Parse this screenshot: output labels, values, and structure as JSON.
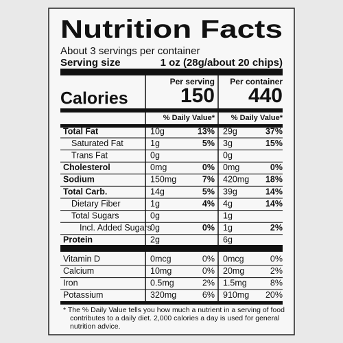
{
  "header": {
    "title": "Nutrition Facts",
    "servings": "About 3 servings per container",
    "serving_size_label": "Serving size",
    "serving_size_value": "1 oz (28g/about 20 chips)"
  },
  "columns": [
    {
      "heading": "Per serving",
      "calories": "150",
      "dv_heading": "% Daily Value*"
    },
    {
      "heading": "Per container",
      "calories": "440",
      "dv_heading": "% Daily Value*"
    }
  ],
  "calories_label": "Calories",
  "nutrients": [
    {
      "name": "Total Fat",
      "serving": [
        "10g",
        "13%"
      ],
      "container": [
        "29g",
        "37%"
      ]
    },
    {
      "name": "Saturated Fat",
      "serving": [
        "1g",
        "5%"
      ],
      "container": [
        "3g",
        "15%"
      ]
    },
    {
      "name": "Trans Fat",
      "serving": [
        "0g",
        null
      ],
      "container": [
        "0g",
        null
      ]
    },
    {
      "name": "Cholesterol",
      "serving": [
        "0mg",
        "0%"
      ],
      "container": [
        "0mg",
        "0%"
      ]
    },
    {
      "name": "Sodium",
      "serving": [
        "150mg",
        "7%"
      ],
      "container": [
        "420mg",
        "18%"
      ]
    },
    {
      "name": "Total Carb.",
      "serving": [
        "14g",
        "5%"
      ],
      "container": [
        "39g",
        "14%"
      ]
    },
    {
      "name": "Dietary Fiber",
      "serving": [
        "1g",
        "4%"
      ],
      "container": [
        "4g",
        "14%"
      ]
    },
    {
      "name": "Total Sugars",
      "serving": [
        "0g",
        null
      ],
      "container": [
        "1g",
        null
      ]
    },
    {
      "name": "Incl. Added Sugars",
      "serving": [
        "0g",
        "0%"
      ],
      "container": [
        "1g",
        "2%"
      ]
    },
    {
      "name": "Protein",
      "serving": [
        "2g",
        null
      ],
      "container": [
        "6g",
        null
      ]
    }
  ],
  "vitamins": [
    {
      "name": "Vitamin D",
      "serving": [
        "0mcg",
        "0%"
      ],
      "container": [
        "0mcg",
        "0%"
      ]
    },
    {
      "name": "Calcium",
      "serving": [
        "10mg",
        "0%"
      ],
      "container": [
        "20mg",
        "2%"
      ]
    },
    {
      "name": "Iron",
      "serving": [
        "0.5mg",
        "2%"
      ],
      "container": [
        "1.5mg",
        "8%"
      ]
    },
    {
      "name": "Potassium",
      "serving": [
        "320mg",
        "6%"
      ],
      "container": [
        "910mg",
        "20%"
      ]
    }
  ],
  "footnote": [
    "* The % Daily Value tells you how much a nutrient in a serving of food",
    "contributes to a daily diet. 2,000 calories a day is used for general",
    "nutrition advice."
  ]
}
